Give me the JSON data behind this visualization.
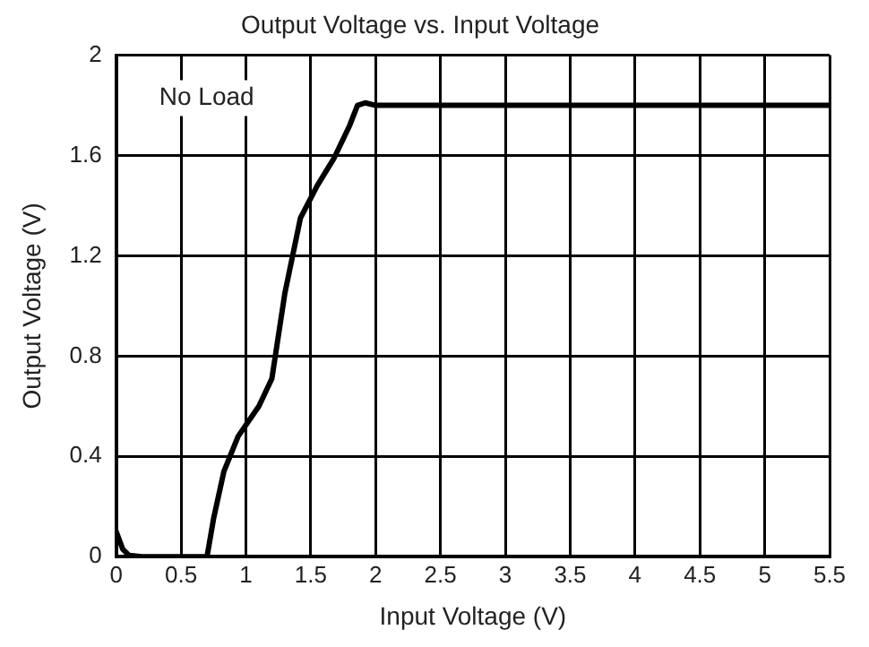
{
  "chart_data": {
    "type": "line",
    "title": "Output Voltage vs. Input Voltage",
    "xlabel": "Input Voltage (V)",
    "ylabel": "Output Voltage (V)",
    "annotations": [
      "No Load"
    ],
    "series": [
      {
        "color": "#000000",
        "x": [
          0,
          0.05,
          0.1,
          0.2,
          0.5,
          0.7,
          0.75,
          0.83,
          0.94,
          1.1,
          1.2,
          1.3,
          1.42,
          1.55,
          1.68,
          1.8,
          1.86,
          1.92,
          2.0,
          3.0,
          4.0,
          5.5
        ],
        "values": [
          0.1,
          0.03,
          0.005,
          0,
          0,
          0,
          0.15,
          0.34,
          0.48,
          0.6,
          0.71,
          1.05,
          1.35,
          1.48,
          1.59,
          1.72,
          1.8,
          1.81,
          1.8,
          1.8,
          1.8,
          1.8
        ]
      }
    ],
    "xlim": [
      0,
      5.5
    ],
    "xticks": [
      0,
      0.5,
      1,
      1.5,
      2,
      2.5,
      3,
      3.5,
      4,
      4.5,
      5,
      5.5
    ],
    "ylim": [
      0,
      2
    ],
    "yticks": [
      0,
      0.4,
      0.8,
      1.2,
      1.6,
      2
    ],
    "grid": true,
    "legend": false,
    "marker": "none",
    "line_style": "solid"
  }
}
